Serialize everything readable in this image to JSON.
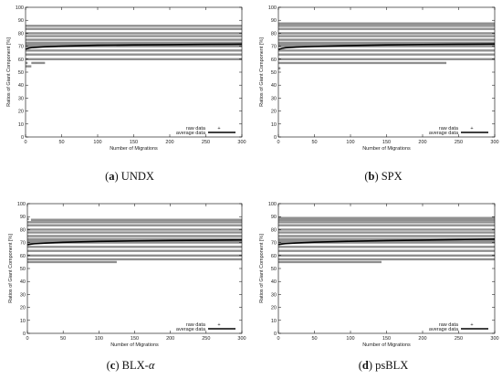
{
  "figure": {
    "panels": [
      {
        "id": "a",
        "caption_letter": "(a)",
        "caption_name": "UNDX",
        "legend": [
          "raw data",
          "average data"
        ],
        "chart_data": {
          "type": "line",
          "xlabel": "Number of Migrations",
          "ylabel": "Ratios of Giant Component [%]",
          "xlim": [
            0,
            300
          ],
          "ylim": [
            0,
            100
          ],
          "xticks": [
            0,
            50,
            100,
            150,
            200,
            250,
            300
          ],
          "yticks": [
            0,
            10,
            20,
            30,
            40,
            50,
            60,
            70,
            80,
            90,
            100
          ],
          "grid": false,
          "legend_position": "bottom-right",
          "raw_levels": [
            {
              "y": 85.7,
              "x_start": 0,
              "x_end": 300
            },
            {
              "y": 83.3,
              "x_start": 0,
              "x_end": 300
            },
            {
              "y": 80.0,
              "x_start": 0,
              "x_end": 300
            },
            {
              "y": 77.8,
              "x_start": 0,
              "x_end": 300
            },
            {
              "y": 75.0,
              "x_start": 0,
              "x_end": 300
            },
            {
              "y": 72.7,
              "x_start": 0,
              "x_end": 300
            },
            {
              "y": 71.4,
              "x_start": 0,
              "x_end": 300
            },
            {
              "y": 70.0,
              "x_start": 0,
              "x_end": 300
            },
            {
              "y": 66.7,
              "x_start": 0,
              "x_end": 300
            },
            {
              "y": 63.6,
              "x_start": 0,
              "x_end": 300
            },
            {
              "y": 60.0,
              "x_start": 0,
              "x_end": 300
            },
            {
              "y": 57.1,
              "x_start": 8,
              "x_end": 27
            },
            {
              "y": 57.1,
              "x_start": 0,
              "x_end": 1
            },
            {
              "y": 54.5,
              "x_start": 0,
              "x_end": 8
            }
          ],
          "series": [
            {
              "name": "average data",
              "x": [
                0,
                5,
                10,
                25,
                50,
                100,
                150,
                200,
                250,
                300
              ],
              "y": [
                67.8,
                68.6,
                69.0,
                69.5,
                70.0,
                70.7,
                71.0,
                71.2,
                71.4,
                71.6
              ]
            }
          ]
        }
      },
      {
        "id": "b",
        "caption_letter": "(b)",
        "caption_name": "SPX",
        "legend": [
          "raw data",
          "average data"
        ],
        "chart_data": {
          "type": "line",
          "xlabel": "Number of Migrations",
          "ylabel": "Ratios of Giant Component [%]",
          "xlim": [
            0,
            300
          ],
          "ylim": [
            0,
            100
          ],
          "xticks": [
            0,
            50,
            100,
            150,
            200,
            250,
            300
          ],
          "yticks": [
            0,
            10,
            20,
            30,
            40,
            50,
            60,
            70,
            80,
            90,
            100
          ],
          "grid": false,
          "legend_position": "bottom-right",
          "raw_levels": [
            {
              "y": 87.5,
              "x_start": 0,
              "x_end": 300
            },
            {
              "y": 85.7,
              "x_start": 0,
              "x_end": 300
            },
            {
              "y": 83.3,
              "x_start": 0,
              "x_end": 300
            },
            {
              "y": 80.0,
              "x_start": 0,
              "x_end": 300
            },
            {
              "y": 77.8,
              "x_start": 0,
              "x_end": 300
            },
            {
              "y": 75.0,
              "x_start": 0,
              "x_end": 300
            },
            {
              "y": 72.7,
              "x_start": 0,
              "x_end": 300
            },
            {
              "y": 71.4,
              "x_start": 0,
              "x_end": 300
            },
            {
              "y": 70.0,
              "x_start": 0,
              "x_end": 300
            },
            {
              "y": 66.7,
              "x_start": 0,
              "x_end": 300
            },
            {
              "y": 63.6,
              "x_start": 0,
              "x_end": 300
            },
            {
              "y": 60.0,
              "x_start": 0,
              "x_end": 300
            },
            {
              "y": 57.1,
              "x_start": 0,
              "x_end": 233
            },
            {
              "y": 53.0,
              "x_start": 0,
              "x_end": 1
            }
          ],
          "series": [
            {
              "name": "average data",
              "x": [
                0,
                5,
                10,
                25,
                50,
                100,
                150,
                200,
                250,
                300
              ],
              "y": [
                67.5,
                68.3,
                68.8,
                69.3,
                69.8,
                70.5,
                71.0,
                71.3,
                71.5,
                71.7
              ]
            }
          ]
        }
      },
      {
        "id": "c",
        "caption_letter": "(c)",
        "caption_name": "BLX-",
        "caption_symbol": "α",
        "legend": [
          "raw data",
          "average data"
        ],
        "chart_data": {
          "type": "line",
          "xlabel": "Number of Migrations",
          "ylabel": "Ratios of Giant Component [%]",
          "xlim": [
            0,
            300
          ],
          "ylim": [
            0,
            100
          ],
          "xticks": [
            0,
            50,
            100,
            150,
            200,
            250,
            300
          ],
          "yticks": [
            0,
            10,
            20,
            30,
            40,
            50,
            60,
            70,
            80,
            90,
            100
          ],
          "grid": false,
          "legend_position": "bottom-right",
          "raw_levels": [
            {
              "y": 87.5,
              "x_start": 5,
              "x_end": 300
            },
            {
              "y": 88.2,
              "x_start": 0,
              "x_end": 2
            },
            {
              "y": 85.7,
              "x_start": 0,
              "x_end": 300
            },
            {
              "y": 83.3,
              "x_start": 0,
              "x_end": 300
            },
            {
              "y": 80.0,
              "x_start": 0,
              "x_end": 300
            },
            {
              "y": 77.8,
              "x_start": 0,
              "x_end": 300
            },
            {
              "y": 75.0,
              "x_start": 0,
              "x_end": 300
            },
            {
              "y": 72.7,
              "x_start": 0,
              "x_end": 300
            },
            {
              "y": 71.4,
              "x_start": 0,
              "x_end": 300
            },
            {
              "y": 70.0,
              "x_start": 0,
              "x_end": 300
            },
            {
              "y": 66.7,
              "x_start": 0,
              "x_end": 300
            },
            {
              "y": 63.6,
              "x_start": 0,
              "x_end": 300
            },
            {
              "y": 60.0,
              "x_start": 0,
              "x_end": 300
            },
            {
              "y": 57.1,
              "x_start": 0,
              "x_end": 300
            },
            {
              "y": 55.0,
              "x_start": 0,
              "x_end": 125
            }
          ],
          "series": [
            {
              "name": "average data",
              "x": [
                0,
                5,
                10,
                25,
                50,
                100,
                150,
                200,
                250,
                300
              ],
              "y": [
                68.3,
                68.8,
                69.1,
                69.6,
                70.2,
                70.9,
                71.3,
                71.6,
                71.8,
                72.0
              ]
            }
          ]
        }
      },
      {
        "id": "d",
        "caption_letter": "(d)",
        "caption_name": "psBLX",
        "legend": [
          "raw data",
          "average data"
        ],
        "chart_data": {
          "type": "line",
          "xlabel": "Number of Migrations",
          "ylabel": "Ratios of Giant Component [%]",
          "xlim": [
            0,
            300
          ],
          "ylim": [
            0,
            100
          ],
          "xticks": [
            0,
            50,
            100,
            150,
            200,
            250,
            300
          ],
          "yticks": [
            0,
            10,
            20,
            30,
            40,
            50,
            60,
            70,
            80,
            90,
            100
          ],
          "grid": false,
          "legend_position": "bottom-right",
          "raw_levels": [
            {
              "y": 88.9,
              "x_start": 0,
              "x_end": 300
            },
            {
              "y": 87.5,
              "x_start": 0,
              "x_end": 300
            },
            {
              "y": 85.7,
              "x_start": 0,
              "x_end": 300
            },
            {
              "y": 83.3,
              "x_start": 0,
              "x_end": 300
            },
            {
              "y": 80.0,
              "x_start": 0,
              "x_end": 300
            },
            {
              "y": 77.8,
              "x_start": 0,
              "x_end": 300
            },
            {
              "y": 75.0,
              "x_start": 0,
              "x_end": 300
            },
            {
              "y": 72.7,
              "x_start": 0,
              "x_end": 300
            },
            {
              "y": 71.4,
              "x_start": 0,
              "x_end": 300
            },
            {
              "y": 70.0,
              "x_start": 0,
              "x_end": 300
            },
            {
              "y": 66.7,
              "x_start": 0,
              "x_end": 300
            },
            {
              "y": 63.6,
              "x_start": 0,
              "x_end": 300
            },
            {
              "y": 60.0,
              "x_start": 0,
              "x_end": 300
            },
            {
              "y": 57.1,
              "x_start": 0,
              "x_end": 300
            },
            {
              "y": 55.0,
              "x_start": 0,
              "x_end": 143
            }
          ],
          "series": [
            {
              "name": "average data",
              "x": [
                0,
                5,
                10,
                25,
                50,
                100,
                150,
                200,
                250,
                300
              ],
              "y": [
                68.4,
                68.9,
                69.2,
                69.7,
                70.3,
                71.0,
                71.5,
                71.9,
                72.3,
                72.7
              ]
            }
          ]
        }
      }
    ],
    "colors": {
      "raw": "#8f8f8f",
      "average": "#000000",
      "axis": "#000000",
      "text": "#111111"
    }
  }
}
